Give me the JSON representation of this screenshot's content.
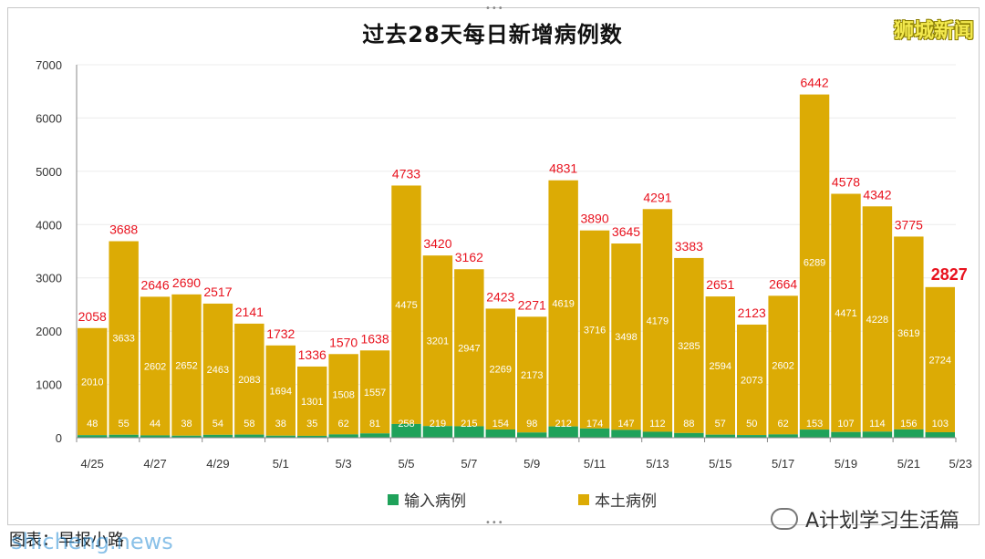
{
  "title": "过去28天每日新增病例数",
  "brand": "狮城新闻",
  "legend": {
    "imported": "输入病例",
    "local": "本土病例"
  },
  "footer": {
    "caption": "图表：早报小路",
    "watermark": "shicheng.news",
    "account": "A计划学习生活篇"
  },
  "colors": {
    "imported": "#1fa25a",
    "local": "#dcab05",
    "total_label": "#e8121e",
    "axis": "#555555"
  },
  "chart_data": {
    "type": "bar",
    "stacked": true,
    "title": "过去28天每日新增病例数",
    "ylim": [
      0,
      7000
    ],
    "yticks": [
      0,
      1000,
      2000,
      3000,
      4000,
      5000,
      6000,
      7000
    ],
    "x_tick_labels": [
      "4/25",
      "4/27",
      "4/29",
      "5/1",
      "5/3",
      "5/5",
      "5/7",
      "5/9",
      "5/11",
      "5/13",
      "5/15",
      "5/17",
      "5/19",
      "5/21",
      "5/23"
    ],
    "categories": [
      "4/25",
      "4/26",
      "4/27",
      "4/28",
      "4/29",
      "4/30",
      "5/1",
      "5/2",
      "5/3",
      "5/4",
      "5/5",
      "5/6",
      "5/7",
      "5/8",
      "5/9",
      "5/10",
      "5/11",
      "5/12",
      "5/13",
      "5/14",
      "5/15",
      "5/16",
      "5/17",
      "5/18",
      "5/19",
      "5/20",
      "5/21",
      "5/22"
    ],
    "series": [
      {
        "name": "输入病例",
        "values": [
          48,
          55,
          44,
          38,
          54,
          58,
          38,
          35,
          62,
          81,
          258,
          219,
          215,
          154,
          98,
          212,
          174,
          147,
          112,
          88,
          57,
          50,
          62,
          153,
          107,
          114,
          156,
          103
        ]
      },
      {
        "name": "本土病例",
        "values": [
          2010,
          3633,
          2602,
          2652,
          2463,
          2083,
          1694,
          1301,
          1508,
          1557,
          4475,
          3201,
          2947,
          2269,
          2173,
          4619,
          3716,
          3498,
          4179,
          3285,
          2594,
          2073,
          2602,
          6289,
          4471,
          4228,
          3619,
          2724
        ]
      }
    ],
    "totals": [
      2058,
      3688,
      2646,
      2690,
      2517,
      2141,
      1732,
      1336,
      1570,
      1638,
      4733,
      3420,
      3162,
      2423,
      2271,
      4831,
      3890,
      3645,
      4291,
      3383,
      2651,
      2123,
      2664,
      6442,
      4578,
      4342,
      3775,
      2827
    ],
    "legend": [
      "输入病例",
      "本土病例"
    ]
  }
}
